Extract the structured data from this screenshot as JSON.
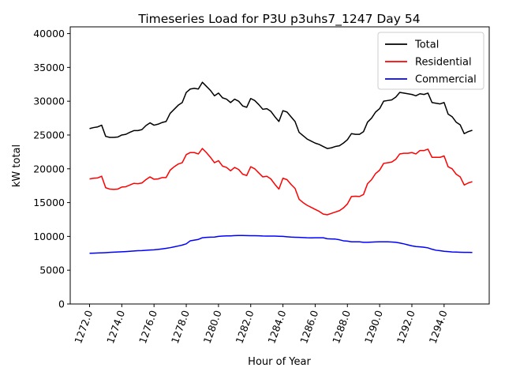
{
  "chart_data": {
    "type": "line",
    "title": "Timeseries Load for P3U p3uhs7_1247  Day 54",
    "xlabel": "Hour of Year",
    "ylabel": "kW total",
    "xlim": [
      1270.8,
      1296.8
    ],
    "ylim": [
      0,
      41000
    ],
    "xticks": [
      1272,
      1274,
      1276,
      1278,
      1280,
      1282,
      1284,
      1286,
      1288,
      1290,
      1292,
      1294
    ],
    "xtick_labels": [
      "1272.0",
      "1274.0",
      "1276.0",
      "1278.0",
      "1280.0",
      "1282.0",
      "1284.0",
      "1286.0",
      "1288.0",
      "1290.0",
      "1292.0",
      "1294.0"
    ],
    "yticks": [
      0,
      5000,
      10000,
      15000,
      20000,
      25000,
      30000,
      35000,
      40000
    ],
    "ytick_labels": [
      "0",
      "5000",
      "10000",
      "15000",
      "20000",
      "25000",
      "30000",
      "35000",
      "40000"
    ],
    "grid": false,
    "legend_position": "top-right",
    "x": [
      1272.0,
      1272.25,
      1272.5,
      1272.75,
      1273.0,
      1273.25,
      1273.5,
      1273.75,
      1274.0,
      1274.25,
      1274.5,
      1274.75,
      1275.0,
      1275.25,
      1275.5,
      1275.75,
      1276.0,
      1276.25,
      1276.5,
      1276.75,
      1277.0,
      1277.25,
      1277.5,
      1277.75,
      1278.0,
      1278.25,
      1278.5,
      1278.75,
      1279.0,
      1279.25,
      1279.5,
      1279.75,
      1280.0,
      1280.25,
      1280.5,
      1280.75,
      1281.0,
      1281.25,
      1281.5,
      1281.75,
      1282.0,
      1282.25,
      1282.5,
      1282.75,
      1283.0,
      1283.25,
      1283.5,
      1283.75,
      1284.0,
      1284.25,
      1284.5,
      1284.75,
      1285.0,
      1285.25,
      1285.5,
      1285.75,
      1286.0,
      1286.25,
      1286.5,
      1286.75,
      1287.0,
      1287.25,
      1287.5,
      1287.75,
      1288.0,
      1288.25,
      1288.5,
      1288.75,
      1289.0,
      1289.25,
      1289.5,
      1289.75,
      1290.0,
      1290.25,
      1290.5,
      1290.75,
      1291.0,
      1291.25,
      1291.5,
      1291.75,
      1292.0,
      1292.25,
      1292.5,
      1292.75,
      1293.0,
      1293.25,
      1293.5,
      1293.75,
      1294.0,
      1294.25,
      1294.5,
      1294.75,
      1295.0,
      1295.25,
      1295.5,
      1295.75
    ],
    "series": [
      {
        "name": "Total",
        "color": "#000000",
        "values": [
          25950,
          26100,
          26200,
          26450,
          24800,
          24650,
          24650,
          24700,
          25000,
          25100,
          25400,
          25650,
          25650,
          25800,
          26400,
          26800,
          26450,
          26600,
          26850,
          27000,
          28200,
          28800,
          29400,
          29800,
          31300,
          31800,
          31900,
          31800,
          32800,
          32200,
          31600,
          30800,
          31200,
          30500,
          30300,
          29800,
          30300,
          30000,
          29300,
          29100,
          30400,
          30100,
          29500,
          28800,
          28900,
          28500,
          27700,
          27000,
          28600,
          28400,
          27700,
          27000,
          25400,
          24900,
          24400,
          24100,
          23800,
          23600,
          23300,
          23000,
          23100,
          23300,
          23400,
          23800,
          24300,
          25200,
          25100,
          25100,
          25500,
          26900,
          27500,
          28400,
          28900,
          30000,
          30100,
          30200,
          30600,
          31300,
          31200,
          31100,
          31000,
          30800,
          31100,
          31000,
          31200,
          29800,
          29700,
          29600,
          29800,
          28100,
          27700,
          26900,
          26500,
          25200,
          25500,
          25700
        ]
      },
      {
        "name": "Residential",
        "color": "#ff0000",
        "values": [
          18500,
          18600,
          18650,
          18900,
          17200,
          17000,
          16950,
          17000,
          17300,
          17350,
          17600,
          17850,
          17800,
          17900,
          18400,
          18800,
          18450,
          18500,
          18700,
          18700,
          19800,
          20300,
          20700,
          20900,
          22100,
          22400,
          22400,
          22200,
          23000,
          22400,
          21700,
          20900,
          21200,
          20400,
          20200,
          19700,
          20200,
          19900,
          19200,
          19000,
          20300,
          20000,
          19400,
          18800,
          18900,
          18500,
          17700,
          17000,
          18600,
          18400,
          17700,
          17100,
          15500,
          15000,
          14600,
          14300,
          14000,
          13700,
          13300,
          13200,
          13400,
          13600,
          13800,
          14200,
          14800,
          15900,
          15950,
          15900,
          16200,
          17800,
          18400,
          19300,
          19800,
          20800,
          20900,
          21000,
          21400,
          22200,
          22300,
          22300,
          22400,
          22200,
          22700,
          22700,
          22900,
          21700,
          21700,
          21700,
          21900,
          20300,
          20000,
          19200,
          18800,
          17600,
          17900,
          18100
        ]
      },
      {
        "name": "Commercial",
        "color": "#0000ff",
        "values": [
          7500,
          7520,
          7550,
          7570,
          7600,
          7630,
          7660,
          7690,
          7720,
          7760,
          7800,
          7840,
          7880,
          7900,
          7940,
          7980,
          8020,
          8080,
          8150,
          8230,
          8330,
          8450,
          8580,
          8720,
          8900,
          9350,
          9450,
          9550,
          9800,
          9850,
          9880,
          9900,
          10000,
          10050,
          10070,
          10080,
          10120,
          10130,
          10130,
          10120,
          10110,
          10100,
          10090,
          10060,
          10050,
          10050,
          10040,
          10020,
          10000,
          9950,
          9900,
          9870,
          9850,
          9830,
          9800,
          9790,
          9800,
          9800,
          9800,
          9650,
          9620,
          9600,
          9500,
          9350,
          9300,
          9200,
          9200,
          9200,
          9120,
          9120,
          9150,
          9180,
          9200,
          9200,
          9200,
          9170,
          9120,
          9020,
          8900,
          8750,
          8600,
          8500,
          8450,
          8400,
          8300,
          8100,
          7950,
          7880,
          7800,
          7750,
          7700,
          7680,
          7650,
          7630,
          7630,
          7620
        ]
      }
    ]
  }
}
